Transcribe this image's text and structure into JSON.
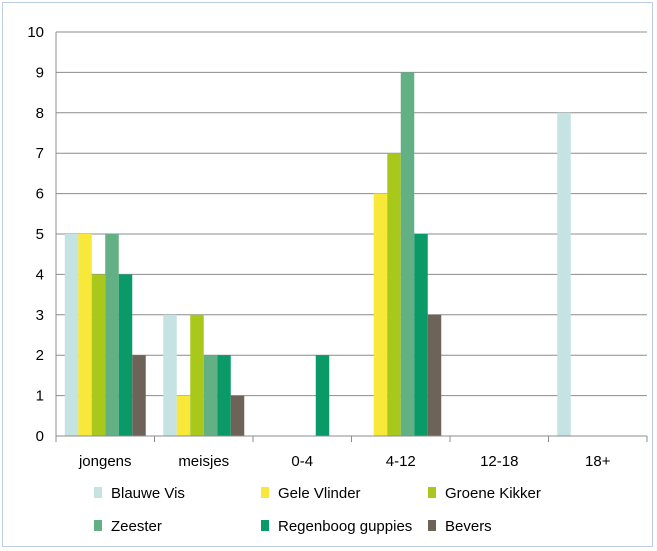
{
  "chart_data": {
    "type": "bar",
    "categories": [
      "jongens",
      "meisjes",
      "0-4",
      "4-12",
      "12-18",
      "18+"
    ],
    "ylim": [
      0,
      10
    ],
    "yticks": [
      0,
      1,
      2,
      3,
      4,
      5,
      6,
      7,
      8,
      9,
      10
    ],
    "grid": true,
    "legend_position": "bottom",
    "series": [
      {
        "name": "Blauwe Vis",
        "color": "#c5e3e3",
        "values": [
          5,
          3,
          0,
          0,
          0,
          8
        ]
      },
      {
        "name": "Gele Vlinder",
        "color": "#f7e83a",
        "values": [
          5,
          1,
          0,
          6,
          0,
          0
        ]
      },
      {
        "name": "Groene Kikker",
        "color": "#a8c81c",
        "values": [
          4,
          3,
          0,
          7,
          0,
          0
        ]
      },
      {
        "name": "Zeester",
        "color": "#62b083",
        "values": [
          5,
          2,
          0,
          9,
          0,
          0
        ]
      },
      {
        "name": "Regenboog guppies",
        "color": "#0a9a68",
        "values": [
          4,
          2,
          2,
          5,
          0,
          0
        ]
      },
      {
        "name": "Bevers",
        "color": "#6e6358",
        "values": [
          2,
          1,
          0,
          3,
          0,
          0
        ]
      }
    ]
  }
}
